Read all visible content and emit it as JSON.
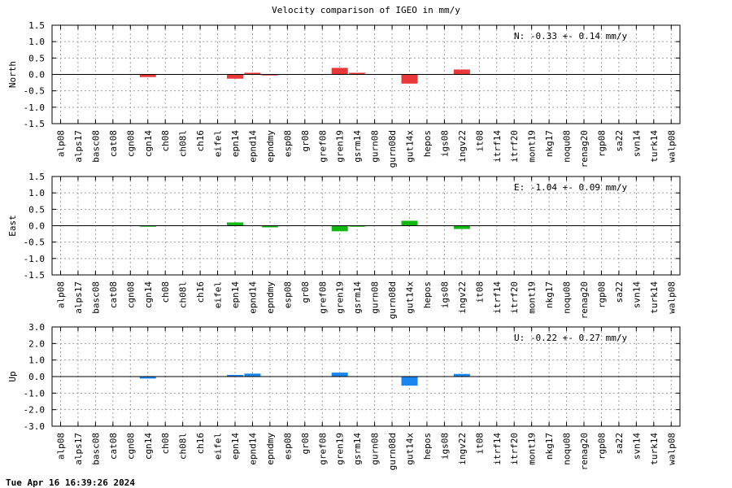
{
  "title": "Velocity comparison of IGEO in mm/y",
  "timestamp": "Tue Apr 16 16:39:26 2024",
  "chart_data": [
    {
      "type": "bar",
      "ylabel": "North",
      "ylim": [
        -1.5,
        1.5
      ],
      "yticks": [
        1.5,
        1.0,
        0.5,
        0.0,
        -0.5,
        -1.0,
        -1.5
      ],
      "ytick_labels": [
        "1.5",
        "1.0",
        "0.5",
        "0.0",
        "-0.5",
        "-1.0",
        "-1.5"
      ],
      "grid": true,
      "color": "#e8383a",
      "annotation": "N:  -0.33 +-  0.14 mm/y",
      "categories": [
        "alp08",
        "alps17",
        "basc08",
        "cat08",
        "cgn08",
        "cgn14",
        "ch08",
        "ch08l",
        "ch16",
        "eifel",
        "epn14",
        "epnd14",
        "epndmy",
        "esp08",
        "gr08",
        "gref08",
        "gren19",
        "gsrm14",
        "gurn08",
        "gurn08d",
        "gut14x",
        "hepos",
        "igs08",
        "ingv22",
        "it08",
        "itrf14",
        "itrf20",
        "mont19",
        "nkg17",
        "noqu08",
        "renag20",
        "rgp08",
        "sa22",
        "svn14",
        "turk14",
        "walp08"
      ],
      "values": [
        0,
        0,
        0,
        0,
        0,
        -0.08,
        0,
        0,
        0,
        0,
        -0.13,
        0.05,
        -0.03,
        0,
        0,
        0,
        0.2,
        0.05,
        0,
        0,
        -0.28,
        0,
        0,
        0.15,
        0,
        0,
        0,
        0,
        0,
        0,
        0,
        0,
        0,
        0,
        0,
        0
      ]
    },
    {
      "type": "bar",
      "ylabel": "East",
      "ylim": [
        -1.5,
        1.5
      ],
      "yticks": [
        1.5,
        1.0,
        0.5,
        0.0,
        -0.5,
        -1.0,
        -1.5
      ],
      "ytick_labels": [
        "1.5",
        "1.0",
        "0.5",
        "0.0",
        "-0.5",
        "-1.0",
        "-1.5"
      ],
      "grid": true,
      "color": "#11b811",
      "annotation": "E:  -1.04 +-  0.09 mm/y",
      "categories": [
        "alp08",
        "alps17",
        "basc08",
        "cat08",
        "cgn08",
        "cgn14",
        "ch08",
        "ch08l",
        "ch16",
        "eifel",
        "epn14",
        "epnd14",
        "epndmy",
        "esp08",
        "gr08",
        "gref08",
        "gren19",
        "gsrm14",
        "gurn08",
        "gurn08d",
        "gut14x",
        "hepos",
        "igs08",
        "ingv22",
        "it08",
        "itrf14",
        "itrf20",
        "mont19",
        "nkg17",
        "noqu08",
        "renag20",
        "rgp08",
        "sa22",
        "svn14",
        "turk14",
        "walp08"
      ],
      "values": [
        0,
        0,
        0,
        0,
        0,
        -0.03,
        0,
        0,
        0,
        0,
        0.1,
        0,
        -0.05,
        0,
        0,
        0,
        -0.17,
        -0.03,
        0,
        0,
        0.15,
        0,
        0,
        -0.1,
        0,
        0,
        0,
        0,
        0,
        0,
        0,
        0,
        0,
        0,
        0,
        0
      ]
    },
    {
      "type": "bar",
      "ylabel": "Up",
      "ylim": [
        -3.0,
        3.0
      ],
      "yticks": [
        3.0,
        2.0,
        1.0,
        0.0,
        -1.0,
        -2.0,
        -3.0
      ],
      "ytick_labels": [
        "3.0",
        "2.0",
        "1.0",
        "0.0",
        "-1.0",
        "-2.0",
        "-3.0"
      ],
      "grid": true,
      "color": "#1a86f0",
      "annotation": "U:  -0.22 +-  0.27 mm/y",
      "categories": [
        "alp08",
        "alps17",
        "basc08",
        "cat08",
        "cgn08",
        "cgn14",
        "ch08",
        "ch08l",
        "ch16",
        "eifel",
        "epn14",
        "epnd14",
        "epndmy",
        "esp08",
        "gr08",
        "gref08",
        "gren19",
        "gsrm14",
        "gurn08",
        "gurn08d",
        "gut14x",
        "hepos",
        "igs08",
        "ingv22",
        "it08",
        "itrf14",
        "itrf20",
        "mont19",
        "nkg17",
        "noqu08",
        "renag20",
        "rgp08",
        "sa22",
        "svn14",
        "turk14",
        "walp08"
      ],
      "values": [
        0,
        0,
        0,
        0,
        0,
        -0.12,
        0,
        0,
        0,
        0,
        0.1,
        0.18,
        0,
        0,
        0,
        0,
        0.24,
        0,
        0,
        0,
        -0.55,
        0,
        0,
        0.16,
        0,
        0,
        0,
        0,
        0,
        0,
        0,
        0,
        0,
        0,
        0,
        0
      ]
    }
  ]
}
